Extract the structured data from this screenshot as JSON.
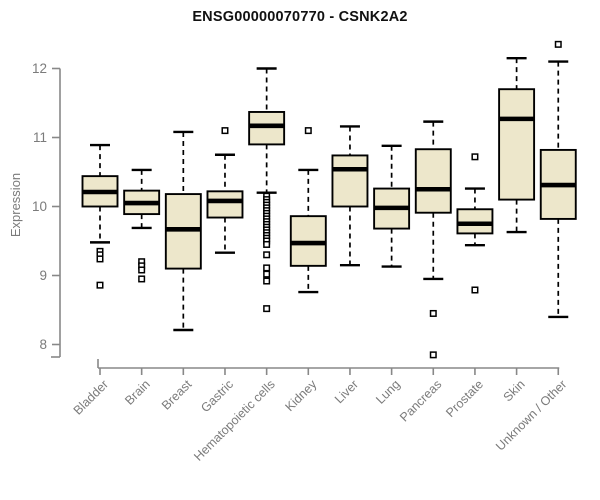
{
  "colors": {
    "background": "#ffffff",
    "box_fill": "#ede7cb",
    "box_border": "#000000",
    "median_line": "#000000",
    "whisker": "#000000",
    "outlier": "#000000",
    "axis": "#888888",
    "tick_label": "#7b7b7b",
    "title": "#111111"
  },
  "chart_data": {
    "type": "box",
    "title": "ENSG00000070770 - CSNK2A2",
    "xlabel": "",
    "ylabel": "Expression",
    "ylim": [
      7.7,
      12.55
    ],
    "yticks": [
      8,
      9,
      10,
      11,
      12
    ],
    "grid": false,
    "legend": null,
    "x_tick_rotation_deg": 45,
    "series": [
      {
        "label": "Bladder",
        "whisker_low": 9.48,
        "q1": 10.0,
        "median": 10.21,
        "q3": 10.44,
        "whisker_high": 10.89,
        "outliers": [
          9.35,
          9.3,
          9.24,
          8.86
        ]
      },
      {
        "label": "Brain",
        "whisker_low": 9.69,
        "q1": 9.89,
        "median": 10.05,
        "q3": 10.23,
        "whisker_high": 10.53,
        "outliers": [
          9.2,
          9.14,
          9.08,
          8.95
        ]
      },
      {
        "label": "Breast",
        "whisker_low": 8.21,
        "q1": 9.1,
        "median": 9.67,
        "q3": 10.18,
        "whisker_high": 11.08,
        "outliers": []
      },
      {
        "label": "Gastric",
        "whisker_low": 9.33,
        "q1": 9.84,
        "median": 10.08,
        "q3": 10.22,
        "whisker_high": 10.75,
        "outliers": [
          11.1
        ]
      },
      {
        "label": "Hematopoietic cells",
        "whisker_low": 10.2,
        "q1": 10.9,
        "median": 11.17,
        "q3": 11.37,
        "whisker_high": 12.0,
        "outliers": [
          10.15,
          10.1,
          10.06,
          10.02,
          9.98,
          9.94,
          9.9,
          9.86,
          9.82,
          9.78,
          9.74,
          9.7,
          9.66,
          9.62,
          9.58,
          9.54,
          9.5,
          9.45,
          9.3,
          9.11,
          9.02,
          8.92,
          8.52
        ]
      },
      {
        "label": "Kidney",
        "whisker_low": 8.76,
        "q1": 9.14,
        "median": 9.47,
        "q3": 9.86,
        "whisker_high": 10.53,
        "outliers": [
          11.1
        ]
      },
      {
        "label": "Liver",
        "whisker_low": 9.15,
        "q1": 10.0,
        "median": 10.54,
        "q3": 10.74,
        "whisker_high": 11.16,
        "outliers": []
      },
      {
        "label": "Lung",
        "whisker_low": 9.13,
        "q1": 9.68,
        "median": 9.98,
        "q3": 10.26,
        "whisker_high": 10.88,
        "outliers": []
      },
      {
        "label": "Pancreas",
        "whisker_low": 8.95,
        "q1": 9.91,
        "median": 10.25,
        "q3": 10.83,
        "whisker_high": 11.23,
        "outliers": [
          8.45,
          7.85
        ]
      },
      {
        "label": "Prostate",
        "whisker_low": 9.44,
        "q1": 9.61,
        "median": 9.75,
        "q3": 9.96,
        "whisker_high": 10.26,
        "outliers": [
          10.72,
          8.79
        ]
      },
      {
        "label": "Skin",
        "whisker_low": 9.63,
        "q1": 10.1,
        "median": 11.27,
        "q3": 11.7,
        "whisker_high": 12.15,
        "outliers": []
      },
      {
        "label": "Unknown / Other",
        "whisker_low": 8.4,
        "q1": 9.82,
        "median": 10.31,
        "q3": 10.82,
        "whisker_high": 12.1,
        "outliers": [
          12.35
        ]
      }
    ]
  }
}
